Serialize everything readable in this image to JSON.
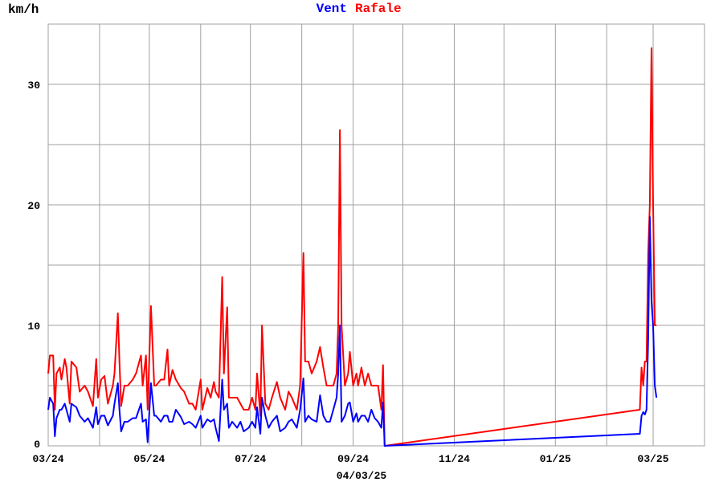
{
  "chart_data": {
    "type": "line",
    "title_parts": [
      {
        "text": "Vent",
        "color": "#0000ff"
      },
      {
        "text": "Rafale",
        "color": "#ff0000"
      }
    ],
    "ylabel": "km/h",
    "xlabel": "04/03/25",
    "ylim": [
      0,
      35
    ],
    "yticks": [
      0,
      10,
      20,
      30
    ],
    "ygrid_step": 5,
    "xlim": [
      "2024-03-01",
      "2025-04-01"
    ],
    "xtick_labels": [
      "03/24",
      "05/24",
      "07/24",
      "09/24",
      "11/24",
      "01/25",
      "03/25"
    ],
    "grid": true,
    "x": [
      "2024-03-01",
      "2024-03-02",
      "2024-03-04",
      "2024-03-05",
      "2024-03-06",
      "2024-03-08",
      "2024-03-09",
      "2024-03-11",
      "2024-03-12",
      "2024-03-14",
      "2024-03-15",
      "2024-03-18",
      "2024-03-20",
      "2024-03-23",
      "2024-03-25",
      "2024-03-28",
      "2024-03-30",
      "2024-03-31",
      "2024-04-02",
      "2024-04-04",
      "2024-04-06",
      "2024-04-09",
      "2024-04-10",
      "2024-04-12",
      "2024-04-13",
      "2024-04-14",
      "2024-04-16",
      "2024-04-18",
      "2024-04-21",
      "2024-04-23",
      "2024-04-26",
      "2024-04-27",
      "2024-04-29",
      "2024-04-30",
      "2024-05-02",
      "2024-05-04",
      "2024-05-05",
      "2024-05-08",
      "2024-05-10",
      "2024-05-12",
      "2024-05-13",
      "2024-05-15",
      "2024-05-17",
      "2024-05-20",
      "2024-05-22",
      "2024-05-25",
      "2024-05-27",
      "2024-05-29",
      "2024-06-01",
      "2024-06-02",
      "2024-06-05",
      "2024-06-07",
      "2024-06-09",
      "2024-06-10",
      "2024-06-12",
      "2024-06-14",
      "2024-06-15",
      "2024-06-17",
      "2024-06-18",
      "2024-06-20",
      "2024-06-23",
      "2024-06-25",
      "2024-06-27",
      "2024-06-30",
      "2024-07-02",
      "2024-07-04",
      "2024-07-05",
      "2024-07-07",
      "2024-07-08",
      "2024-07-10",
      "2024-07-12",
      "2024-07-14",
      "2024-07-17",
      "2024-07-19",
      "2024-07-22",
      "2024-07-24",
      "2024-07-26",
      "2024-07-29",
      "2024-07-31",
      "2024-08-02",
      "2024-08-03",
      "2024-08-05",
      "2024-08-07",
      "2024-08-10",
      "2024-08-12",
      "2024-08-14",
      "2024-08-16",
      "2024-08-18",
      "2024-08-20",
      "2024-08-22",
      "2024-08-23",
      "2024-08-24",
      "2024-08-25",
      "2024-08-27",
      "2024-08-29",
      "2024-08-30",
      "2024-09-01",
      "2024-09-03",
      "2024-09-04",
      "2024-09-06",
      "2024-09-08",
      "2024-09-10",
      "2024-09-12",
      "2024-09-14",
      "2024-09-16",
      "2024-09-18",
      "2024-09-19",
      "2024-09-20",
      "2025-02-21",
      "2025-02-22",
      "2025-02-23",
      "2025-02-24",
      "2025-02-25",
      "2025-02-26",
      "2025-02-27",
      "2025-02-28",
      "2025-03-01",
      "2025-03-02",
      "2025-03-03"
    ],
    "series": [
      {
        "name": "Vent",
        "color": "#0000ff",
        "values": [
          3,
          4,
          3.5,
          0.8,
          2.3,
          3,
          3,
          3.5,
          3,
          2,
          3.5,
          3.2,
          2.5,
          2,
          2.3,
          1.5,
          3.2,
          1.8,
          2.5,
          2.5,
          1.7,
          2.5,
          3.5,
          5.2,
          3,
          1.2,
          2,
          2,
          2.3,
          2.3,
          3.5,
          2,
          2.2,
          0.3,
          5.2,
          2.5,
          2.5,
          2,
          2.5,
          2.5,
          2,
          2,
          3,
          2.4,
          1.8,
          2,
          1.8,
          1.5,
          2.5,
          1.5,
          2.2,
          2,
          2.2,
          1.5,
          0.4,
          5.5,
          3,
          3.5,
          1.5,
          2,
          1.5,
          2,
          1.2,
          1.5,
          2,
          1.5,
          3.2,
          1,
          4,
          2.5,
          1.5,
          2,
          2.5,
          1.2,
          1.5,
          2,
          2.2,
          1.5,
          3,
          5.6,
          2,
          2.5,
          2.2,
          2,
          4.2,
          2.5,
          2,
          2,
          3,
          4,
          6,
          10,
          2,
          2.5,
          3.5,
          3.6,
          2,
          2.7,
          2,
          2.5,
          2.5,
          2,
          3,
          2.3,
          2,
          1.5,
          3.6,
          0,
          1,
          2.5,
          2.8,
          2.6,
          3,
          9,
          19,
          12,
          10,
          5,
          4
        ]
      },
      {
        "name": "Rafale",
        "color": "#ff0000",
        "values": [
          6,
          7.5,
          7.5,
          3,
          6,
          6.5,
          5.5,
          7.2,
          6.5,
          3.5,
          7,
          6.5,
          4.5,
          5,
          4.5,
          3.3,
          7.2,
          4,
          5.5,
          5.8,
          3.5,
          5,
          6,
          11,
          7,
          3.3,
          5,
          5,
          5.5,
          6,
          7.5,
          5,
          7.5,
          3,
          11.6,
          5,
          5,
          5.5,
          5.5,
          8,
          5,
          6.3,
          5.5,
          4.8,
          4.5,
          3.5,
          3.5,
          3,
          5.5,
          3,
          4.8,
          4,
          5.3,
          4.5,
          4,
          14,
          6,
          11.5,
          4,
          4,
          4,
          3.5,
          3,
          3,
          4,
          3,
          6,
          2.5,
          10,
          3.5,
          3,
          4,
          5.3,
          4,
          3,
          4.5,
          4,
          3,
          5,
          16,
          7,
          7,
          6,
          7,
          8.2,
          6.5,
          5,
          5,
          5,
          6,
          10,
          26.2,
          10,
          5,
          6,
          7.8,
          5,
          6,
          5,
          6.5,
          5,
          6,
          5,
          5,
          5,
          3,
          6.7,
          0,
          3,
          6.5,
          5,
          7,
          7,
          16,
          20,
          33,
          20,
          10,
          10
        ]
      }
    ]
  }
}
